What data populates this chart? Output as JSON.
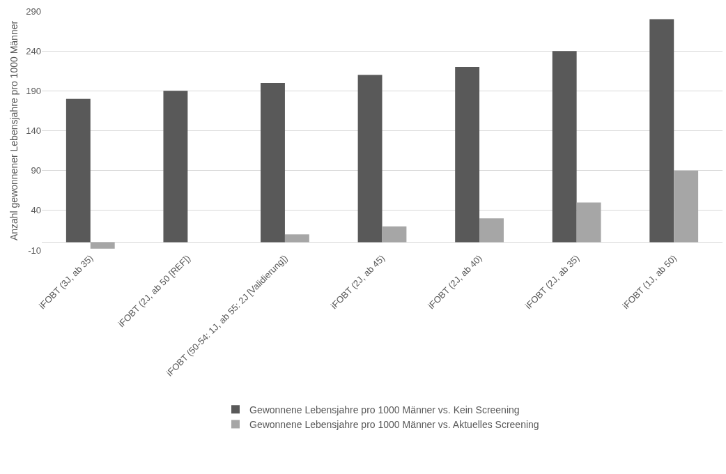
{
  "chart_data": {
    "type": "bar",
    "ylabel": "Anzahl gewonnener Lebensjahre pro 1000 Männer",
    "categories": [
      "iFOBT (3J, ab 35)",
      "iFOBT (2J, ab 50 [REF])",
      "iFOBT (50-54: 1J, ab 55: 2J [Validierung])",
      "iFOBT (2J, ab 45)",
      "iFOBT (2J, ab 40)",
      "iFOBT (2J, ab 35)",
      "iFOBT (1J, ab 50)"
    ],
    "series": [
      {
        "name": "Gewonnene Lebensjahre pro 1000 Männer vs. Kein Screening",
        "color": "#595959",
        "values": [
          180,
          190,
          200,
          210,
          220,
          240,
          280
        ]
      },
      {
        "name": "Gewonnene Lebensjahre pro 1000 Männer vs. Aktuelles Screening",
        "color": "#a6a6a6",
        "values": [
          -8,
          0,
          10,
          20,
          30,
          50,
          90
        ]
      }
    ],
    "ylim": [
      -10,
      290
    ],
    "yticks": [
      -10,
      40,
      90,
      140,
      190,
      240,
      290
    ],
    "grid": "y",
    "legend": "bottom"
  }
}
